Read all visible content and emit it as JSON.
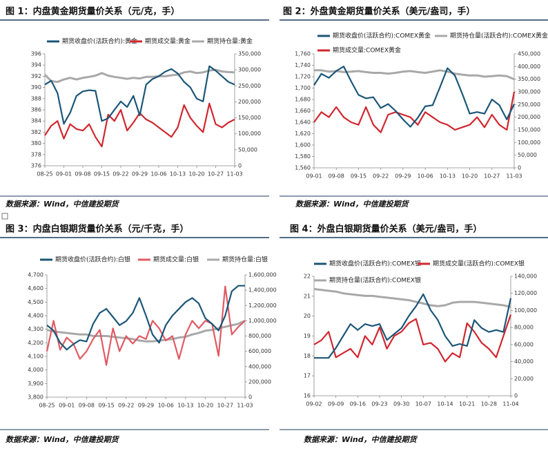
{
  "chart_data": [
    {
      "type": "line",
      "title": "图 1：内盘黄金期货量价关系（元/克，手）",
      "source": "数据来源：Wind，中信建投期货",
      "categories": [
        "08-25",
        null,
        null,
        "09-01",
        null,
        null,
        "09-08",
        null,
        null,
        "09-15",
        null,
        null,
        "09-22",
        null,
        null,
        "09-29",
        null,
        null,
        "10-06",
        null,
        null,
        "10-13",
        null,
        null,
        "10-20",
        null,
        null,
        "10-27",
        null,
        null,
        "11-03"
      ],
      "ylim": [
        376,
        396
      ],
      "yticks": [
        376,
        378,
        380,
        382,
        384,
        386,
        388,
        390,
        392,
        394,
        396
      ],
      "y2lim": [
        0,
        350000
      ],
      "y2ticks": [
        0,
        {
          "value": 50000,
          "label": "50,000"
        },
        {
          "value": 100000,
          "label": "100,000"
        },
        {
          "value": 150000,
          "label": "150,000"
        },
        {
          "value": 200000,
          "label": "200,000"
        },
        {
          "value": 250000,
          "label": "250,000"
        },
        {
          "value": 300000,
          "label": "300,000"
        },
        {
          "value": 350000,
          "label": "350,000"
        }
      ],
      "series": [
        {
          "name": "期货收盘价(活跃合约):黄金",
          "color": "#1b5577",
          "values": [
            390.5,
            391.2,
            389,
            383.5,
            385.5,
            388.5,
            389.3,
            389.5,
            389.4,
            384,
            384.5,
            386,
            387.5,
            386.5,
            388.5,
            385,
            390.5,
            391.5,
            392,
            392.8,
            393.3,
            392.5,
            391,
            390,
            388,
            387.5,
            393.8,
            393,
            392,
            391,
            390.5
          ]
        },
        {
          "name": "期货成交量:黄金",
          "color": "#d0262e",
          "axis": "y2",
          "values": [
            95000,
            125000,
            140000,
            85000,
            130000,
            115000,
            110000,
            130000,
            90000,
            60000,
            160000,
            140000,
            175000,
            110000,
            135000,
            165000,
            145000,
            135000,
            120000,
            105000,
            90000,
            120000,
            190000,
            150000,
            125000,
            105000,
            195000,
            130000,
            120000,
            135000,
            145000
          ]
        },
        {
          "name": "期货持仓量:黄金",
          "color": "#a8a8a8",
          "axis": "y2",
          "values": [
            285000,
            265000,
            262000,
            270000,
            275000,
            270000,
            275000,
            278000,
            282000,
            290000,
            282000,
            278000,
            275000,
            272000,
            275000,
            273000,
            278000,
            278000,
            280000,
            280000,
            283000,
            285000,
            292000,
            295000,
            290000,
            292000,
            298000,
            300000,
            295000,
            293000,
            292000
          ]
        }
      ]
    },
    {
      "type": "line",
      "title": "图 2：外盘黄金期货量价关系（美元/盎司，手）",
      "source": "数据来源：Wind，中信建投期货",
      "categories": [
        "09-01",
        null,
        null,
        "09-08",
        null,
        null,
        "09-15",
        null,
        null,
        "09-22",
        null,
        null,
        "09-29",
        null,
        null,
        "10-06",
        null,
        null,
        "10-13",
        null,
        null,
        "10-20",
        null,
        null,
        "10-27",
        null,
        null,
        "11-03"
      ],
      "ylim": [
        1560,
        1760
      ],
      "yticks": [
        {
          "value": 1560,
          "label": "1,560"
        },
        {
          "value": 1580,
          "label": "1,580"
        },
        {
          "value": 1600,
          "label": "1,600"
        },
        {
          "value": 1620,
          "label": "1,620"
        },
        {
          "value": 1640,
          "label": "1,640"
        },
        {
          "value": 1660,
          "label": "1,660"
        },
        {
          "value": 1680,
          "label": "1,680"
        },
        {
          "value": 1700,
          "label": "1,700"
        },
        {
          "value": 1720,
          "label": "1,720"
        },
        {
          "value": 1740,
          "label": "1,740"
        },
        {
          "value": 1760,
          "label": "1,760"
        }
      ],
      "y2lim": [
        0,
        450000
      ],
      "y2ticks": [
        0,
        {
          "value": 50000,
          "label": "50,000"
        },
        {
          "value": 100000,
          "label": "100,000"
        },
        {
          "value": 150000,
          "label": "150,000"
        },
        {
          "value": 200000,
          "label": "200,000"
        },
        {
          "value": 250000,
          "label": "250,000"
        },
        {
          "value": 300000,
          "label": "300,000"
        },
        {
          "value": 350000,
          "label": "350,000"
        },
        {
          "value": 400000,
          "label": "400,000"
        },
        {
          "value": 450000,
          "label": "450,000"
        }
      ],
      "series": [
        {
          "name": "期货收盘价(活跃合约):COMEX黄金",
          "color": "#1b5577",
          "values": [
            1705,
            1725,
            1718,
            1730,
            1738,
            1712,
            1688,
            1682,
            1684,
            1665,
            1672,
            1660,
            1645,
            1632,
            1648,
            1668,
            1670,
            1702,
            1735,
            1722,
            1690,
            1655,
            1658,
            1655,
            1680,
            1670,
            1645,
            1672
          ]
        },
        {
          "name": "期货持仓量(活跃合约):COMEX黄金",
          "color": "#a8a8a8",
          "axis": "y2",
          "values": [
            385000,
            385000,
            380000,
            382000,
            378000,
            380000,
            382000,
            378000,
            375000,
            375000,
            372000,
            375000,
            380000,
            382000,
            378000,
            375000,
            380000,
            385000,
            380000,
            372000,
            368000,
            365000,
            365000,
            360000,
            362000,
            365000,
            362000,
            350000
          ]
        },
        {
          "name": "期货成交量:COMEX黄金",
          "color": "#d0262e",
          "axis": "y2",
          "values": [
            180000,
            220000,
            200000,
            240000,
            200000,
            180000,
            170000,
            240000,
            170000,
            140000,
            210000,
            220000,
            210000,
            200000,
            170000,
            220000,
            200000,
            180000,
            170000,
            150000,
            160000,
            170000,
            200000,
            160000,
            210000,
            170000,
            150000,
            300000
          ]
        }
      ]
    },
    {
      "type": "line",
      "title": "图 3：内盘白银期货量价关系（元/千克，手）",
      "source": "数据来源：Wind，中信建投期货",
      "categories": [
        "08-25",
        null,
        null,
        "09-01",
        null,
        null,
        "09-08",
        null,
        null,
        "09-15",
        null,
        null,
        "09-22",
        null,
        null,
        "09-29",
        null,
        null,
        "10-06",
        null,
        null,
        "10-13",
        null,
        null,
        "10-20",
        null,
        null,
        "10-27",
        null,
        null,
        "11-03"
      ],
      "ylim": [
        3800,
        4700
      ],
      "yticks": [
        {
          "value": 3800,
          "label": "3,800"
        },
        {
          "value": 3900,
          "label": "3,900"
        },
        {
          "value": 4000,
          "label": "4,000"
        },
        {
          "value": 4100,
          "label": "4,100"
        },
        {
          "value": 4200,
          "label": "4,200"
        },
        {
          "value": 4300,
          "label": "4,300"
        },
        {
          "value": 4400,
          "label": "4,400"
        },
        {
          "value": 4500,
          "label": "4,500"
        },
        {
          "value": 4600,
          "label": "4,600"
        },
        {
          "value": 4700,
          "label": "4,700"
        }
      ],
      "y2lim": [
        0,
        1600000
      ],
      "y2ticks": [
        0,
        {
          "value": 200000,
          "label": "200,000"
        },
        {
          "value": 400000,
          "label": "400,000"
        },
        {
          "value": 600000,
          "label": "600,000"
        },
        {
          "value": 800000,
          "label": "800,000"
        },
        {
          "value": 1000000,
          "label": "1,000,000"
        },
        {
          "value": 1200000,
          "label": "1,200,000"
        },
        {
          "value": 1400000,
          "label": "1,400,000"
        },
        {
          "value": 1600000,
          "label": "1,600,000"
        }
      ],
      "series": [
        {
          "name": "期货收盘价(活跃合约):白银",
          "color": "#1b5577",
          "values": [
            4330,
            4290,
            4200,
            4150,
            4190,
            4220,
            4210,
            4340,
            4420,
            4450,
            4390,
            4330,
            4360,
            4420,
            4530,
            4400,
            4260,
            4200,
            4330,
            4400,
            4450,
            4500,
            4530,
            4490,
            4380,
            4340,
            4290,
            4400,
            4580,
            4620,
            4620
          ]
        },
        {
          "name": "期货成交量:白银",
          "color": "#e05a63",
          "axis": "y2",
          "values": [
            600000,
            1000000,
            620000,
            780000,
            700000,
            500000,
            600000,
            760000,
            880000,
            420000,
            900000,
            600000,
            800000,
            700000,
            800000,
            760000,
            1000000,
            900000,
            740000,
            800000,
            500000,
            820000,
            1000000,
            900000,
            1000000,
            960000,
            540000,
            1450000,
            820000,
            920000,
            1000000
          ]
        },
        {
          "name": "期货持仓量:白银",
          "color": "#a8a8a8",
          "axis": "y2",
          "values": [
            880000,
            860000,
            850000,
            840000,
            830000,
            820000,
            820000,
            800000,
            800000,
            800000,
            790000,
            780000,
            770000,
            760000,
            740000,
            730000,
            730000,
            740000,
            750000,
            760000,
            780000,
            790000,
            820000,
            840000,
            870000,
            880000,
            900000,
            920000,
            940000,
            960000,
            1000000
          ]
        }
      ]
    },
    {
      "type": "line",
      "title": "图 4：外盘白银期货量价关系（美元/盎司，手）",
      "source": "数据来源：Wind，中信建投期货",
      "categories": [
        "09-02",
        null,
        null,
        "09-09",
        null,
        null,
        "09-16",
        null,
        null,
        "09-23",
        null,
        null,
        "09-30",
        null,
        null,
        "10-07",
        null,
        null,
        "10-14",
        null,
        null,
        "10-21",
        null,
        null,
        "10-28",
        null,
        null,
        "11-04"
      ],
      "ylim": [
        16,
        22
      ],
      "yticks": [
        16,
        17,
        18,
        19,
        20,
        21,
        22
      ],
      "y2lim": [
        0,
        140000
      ],
      "y2ticks": [
        0,
        {
          "value": 20000,
          "label": "20,000"
        },
        {
          "value": 40000,
          "label": "40,000"
        },
        {
          "value": 60000,
          "label": "60,000"
        },
        {
          "value": 80000,
          "label": "80,000"
        },
        {
          "value": 100000,
          "label": "100,000"
        },
        {
          "value": 120000,
          "label": "120,000"
        },
        {
          "value": 140000,
          "label": "140,000"
        }
      ],
      "series": [
        {
          "name": "期货收盘价(活跃合约):COMEX银",
          "color": "#1b5577",
          "values": [
            17.9,
            17.9,
            17.9,
            18.4,
            19.0,
            19.6,
            19.3,
            19.6,
            19.5,
            19.6,
            18.8,
            19.1,
            19.4,
            20.0,
            20.5,
            21.1,
            20.3,
            19.8,
            19.0,
            18.5,
            18.6,
            18.5,
            19.8,
            19.4,
            19.2,
            19.3,
            19.2,
            20.9
          ]
        },
        {
          "name": "期货成交量(活跃合约):COMEX银",
          "color": "#d0262e",
          "axis": "y2",
          "values": [
            60000,
            65000,
            75000,
            45000,
            50000,
            55000,
            45000,
            70000,
            60000,
            80000,
            55000,
            70000,
            75000,
            85000,
            90000,
            60000,
            62000,
            55000,
            40000,
            50000,
            45000,
            85000,
            75000,
            62000,
            55000,
            45000,
            70000,
            95000
          ]
        },
        {
          "name": "期货持仓量(活跃合约):COMEX银",
          "color": "#a8a8a8",
          "axis": "y2",
          "values": [
            125000,
            124000,
            123000,
            122000,
            120000,
            119000,
            118000,
            117000,
            117000,
            116000,
            115000,
            114000,
            113000,
            112000,
            110000,
            108000,
            106000,
            105000,
            106000,
            109000,
            110000,
            110000,
            110000,
            109000,
            108000,
            107000,
            106000,
            104000
          ]
        }
      ]
    }
  ]
}
